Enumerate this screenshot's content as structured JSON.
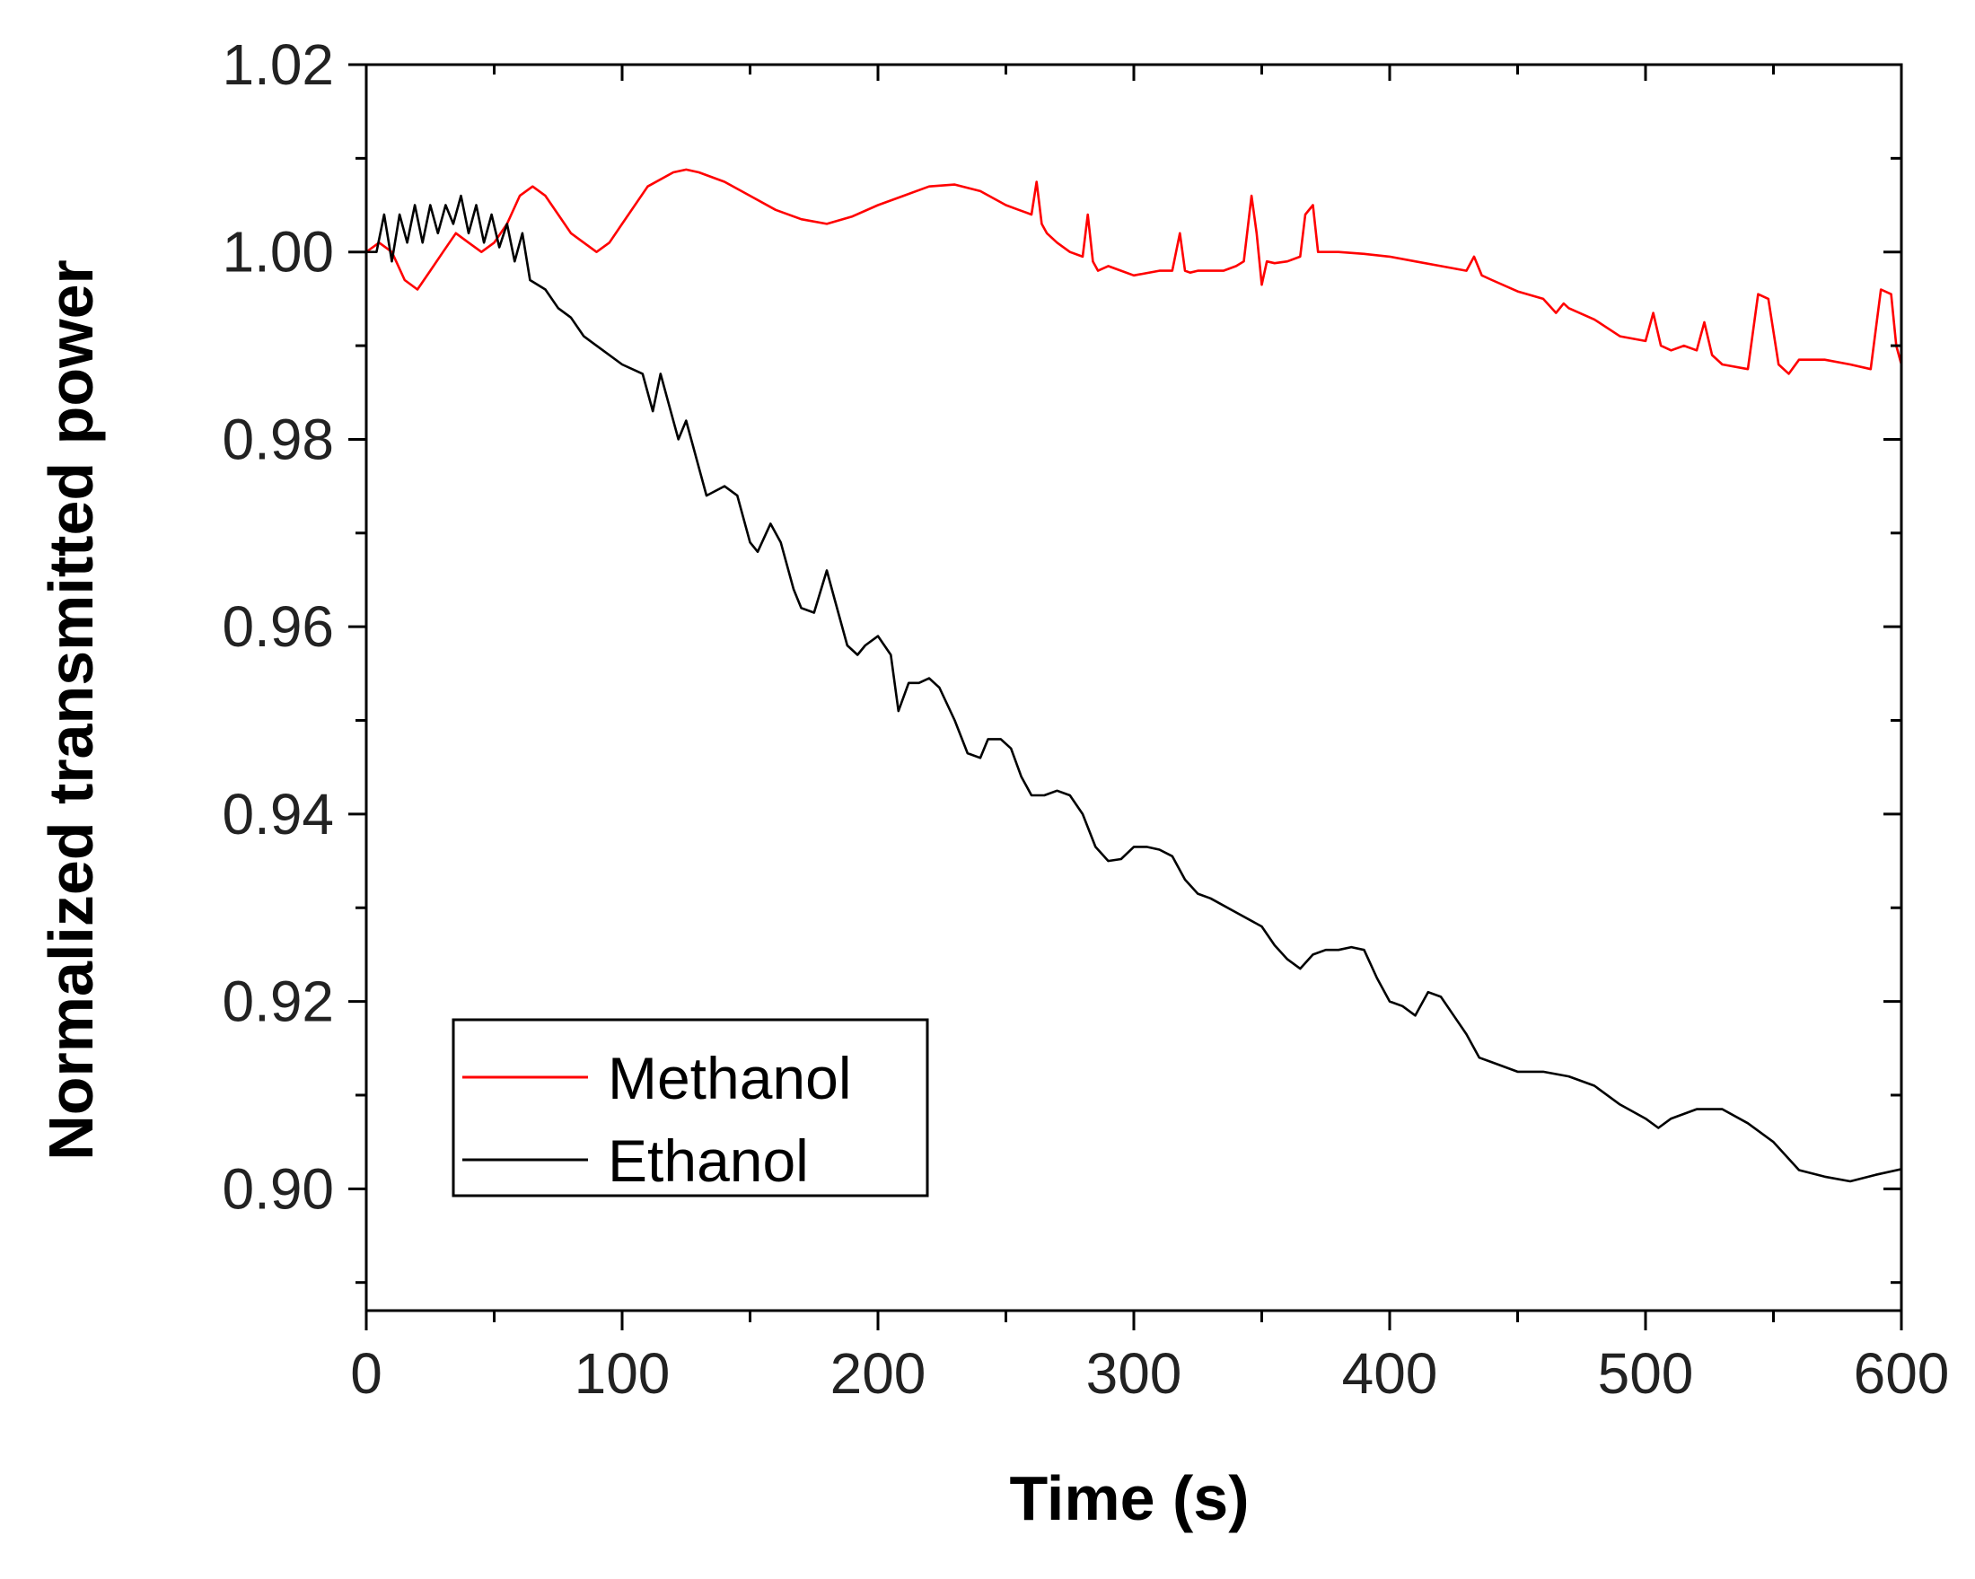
{
  "chart_data": {
    "type": "line",
    "title": "",
    "xlabel": "Time (s)",
    "ylabel": "Normalized transmitted power",
    "xlim": [
      0,
      600
    ],
    "ylim": [
      0.887,
      1.02
    ],
    "x_ticks": [
      0,
      100,
      200,
      300,
      400,
      500,
      600
    ],
    "x_tick_labels": [
      "0",
      "100",
      "200",
      "300",
      "400",
      "500",
      "600"
    ],
    "y_ticks": [
      0.9,
      0.92,
      0.94,
      0.96,
      0.98,
      1.0,
      1.02
    ],
    "y_tick_labels": [
      "0.90",
      "0.92",
      "0.94",
      "0.96",
      "0.98",
      "1.00",
      "1.02"
    ],
    "grid": false,
    "legend_position": "lower-left",
    "series": [
      {
        "name": "Methanol",
        "color": "#ff0000",
        "x": [
          0,
          5,
          10,
          15,
          20,
          25,
          30,
          35,
          40,
          45,
          50,
          55,
          60,
          65,
          70,
          75,
          80,
          85,
          90,
          95,
          100,
          110,
          120,
          125,
          130,
          140,
          150,
          160,
          170,
          180,
          190,
          200,
          210,
          220,
          230,
          240,
          250,
          255,
          260,
          262,
          264,
          266,
          270,
          275,
          280,
          282,
          284,
          286,
          290,
          295,
          300,
          310,
          315,
          318,
          320,
          322,
          325,
          330,
          335,
          340,
          343,
          346,
          348,
          350,
          352,
          355,
          360,
          365,
          367,
          370,
          372,
          375,
          380,
          390,
          400,
          410,
          420,
          430,
          433,
          436,
          440,
          450,
          460,
          465,
          468,
          470,
          480,
          490,
          500,
          503,
          506,
          510,
          515,
          520,
          523,
          526,
          530,
          540,
          544,
          548,
          552,
          556,
          560,
          570,
          580,
          588,
          592,
          596,
          598,
          600
        ],
        "y": [
          1.0,
          1.001,
          1.0,
          0.997,
          0.996,
          0.998,
          1.0,
          1.002,
          1.001,
          1.0,
          1.001,
          1.003,
          1.006,
          1.007,
          1.006,
          1.004,
          1.002,
          1.001,
          1.0,
          1.001,
          1.003,
          1.007,
          1.0085,
          1.0088,
          1.0085,
          1.0075,
          1.006,
          1.0045,
          1.0035,
          1.003,
          1.0038,
          1.005,
          1.006,
          1.007,
          1.0072,
          1.0065,
          1.005,
          1.0045,
          1.004,
          1.0075,
          1.003,
          1.002,
          1.001,
          1.0,
          0.9995,
          1.004,
          0.999,
          0.998,
          0.9985,
          0.998,
          0.9975,
          0.998,
          0.998,
          1.002,
          0.998,
          0.9978,
          0.998,
          0.998,
          0.998,
          0.9985,
          0.999,
          1.006,
          1.002,
          0.9965,
          0.999,
          0.9988,
          0.999,
          0.9995,
          1.004,
          1.005,
          1.0,
          1.0,
          1.0,
          0.9998,
          0.9995,
          0.999,
          0.9985,
          0.998,
          0.9995,
          0.9975,
          0.997,
          0.9958,
          0.995,
          0.9935,
          0.9945,
          0.994,
          0.9928,
          0.991,
          0.9905,
          0.9935,
          0.99,
          0.9895,
          0.99,
          0.9895,
          0.9925,
          0.989,
          0.988,
          0.9875,
          0.9955,
          0.995,
          0.988,
          0.987,
          0.9885,
          0.9885,
          0.988,
          0.9875,
          0.996,
          0.9955,
          0.99,
          0.988
        ]
      },
      {
        "name": "Ethanol",
        "color": "#000000",
        "x": [
          0,
          4,
          7,
          10,
          13,
          16,
          19,
          22,
          25,
          28,
          31,
          34,
          37,
          40,
          43,
          46,
          49,
          52,
          55,
          58,
          61,
          64,
          70,
          75,
          80,
          85,
          90,
          100,
          108,
          112,
          115,
          118,
          122,
          125,
          128,
          133,
          140,
          145,
          150,
          153,
          158,
          162,
          167,
          170,
          175,
          180,
          183,
          188,
          192,
          195,
          200,
          205,
          208,
          212,
          216,
          220,
          224,
          230,
          235,
          240,
          243,
          248,
          252,
          256,
          260,
          265,
          270,
          275,
          280,
          285,
          290,
          295,
          300,
          305,
          310,
          315,
          320,
          325,
          330,
          340,
          350,
          355,
          360,
          365,
          370,
          375,
          380,
          385,
          390,
          395,
          400,
          405,
          410,
          415,
          420,
          425,
          430,
          435,
          440,
          450,
          460,
          470,
          480,
          490,
          500,
          505,
          510,
          520,
          530,
          540,
          550,
          560,
          570,
          580,
          590,
          600
        ],
        "y": [
          1.0,
          1.0,
          1.004,
          0.999,
          1.004,
          1.001,
          1.005,
          1.001,
          1.005,
          1.002,
          1.005,
          1.003,
          1.006,
          1.002,
          1.005,
          1.001,
          1.004,
          1.0005,
          1.003,
          0.999,
          1.002,
          0.997,
          0.996,
          0.994,
          0.993,
          0.991,
          0.99,
          0.988,
          0.987,
          0.983,
          0.987,
          0.984,
          0.98,
          0.982,
          0.979,
          0.974,
          0.975,
          0.974,
          0.969,
          0.968,
          0.971,
          0.969,
          0.964,
          0.962,
          0.9615,
          0.966,
          0.963,
          0.958,
          0.957,
          0.958,
          0.959,
          0.957,
          0.951,
          0.954,
          0.954,
          0.9545,
          0.9535,
          0.95,
          0.9465,
          0.946,
          0.948,
          0.948,
          0.947,
          0.944,
          0.942,
          0.942,
          0.9425,
          0.942,
          0.94,
          0.9365,
          0.935,
          0.9352,
          0.9365,
          0.9365,
          0.9362,
          0.9355,
          0.933,
          0.9315,
          0.931,
          0.9295,
          0.928,
          0.926,
          0.9245,
          0.9235,
          0.925,
          0.9255,
          0.9255,
          0.9258,
          0.9255,
          0.9225,
          0.92,
          0.9195,
          0.9185,
          0.921,
          0.9205,
          0.9185,
          0.9165,
          0.914,
          0.9135,
          0.9125,
          0.9125,
          0.912,
          0.911,
          0.909,
          0.9075,
          0.9065,
          0.9075,
          0.9085,
          0.9085,
          0.907,
          0.905,
          0.902,
          0.9013,
          0.9008,
          0.9015,
          0.9021
        ]
      }
    ]
  }
}
